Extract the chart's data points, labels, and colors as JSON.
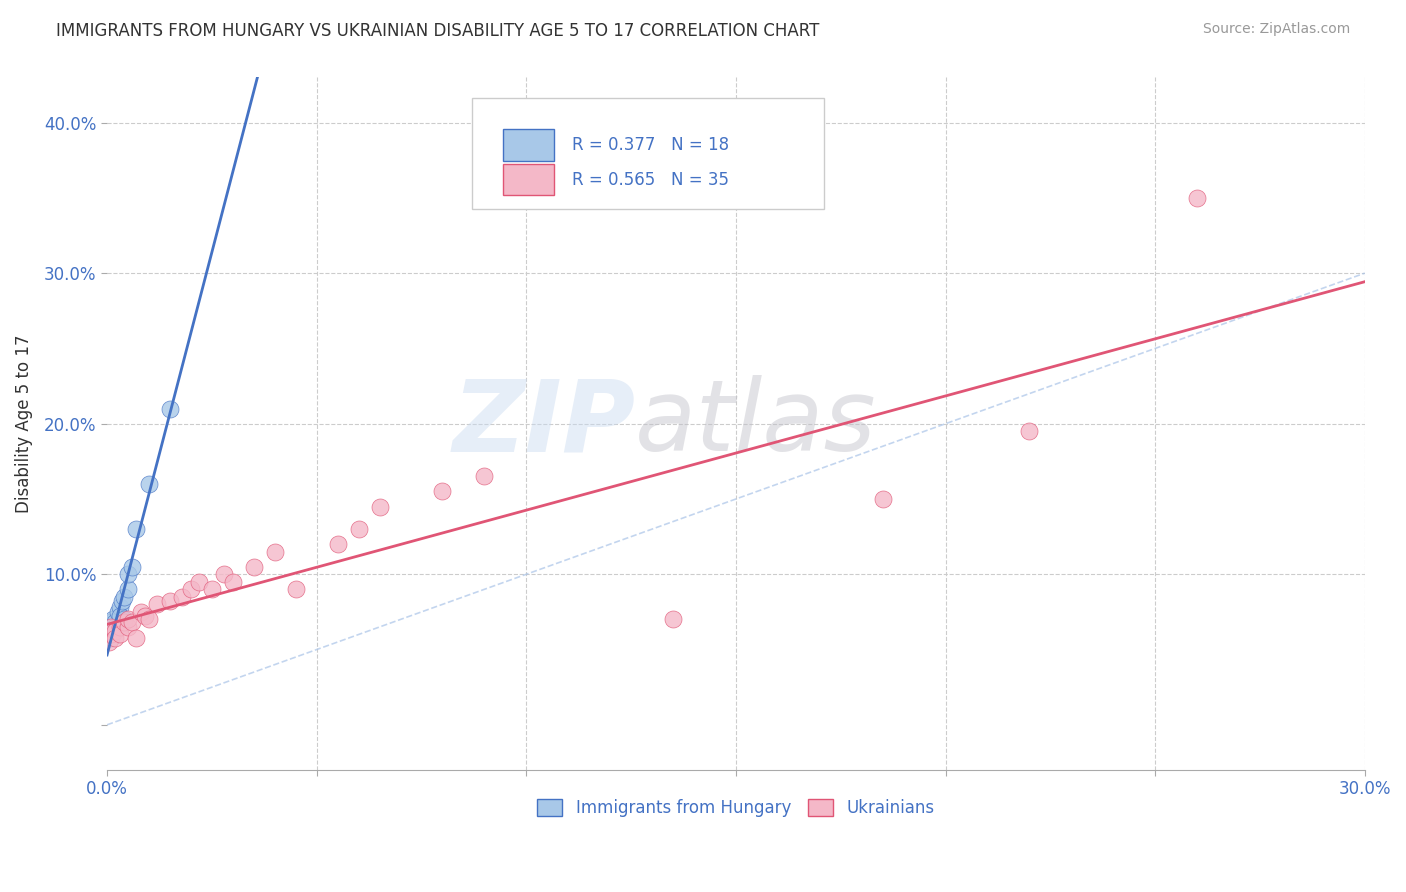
{
  "title": "IMMIGRANTS FROM HUNGARY VS UKRAINIAN DISABILITY AGE 5 TO 17 CORRELATION CHART",
  "source": "Source: ZipAtlas.com",
  "ylabel": "Disability Age 5 to 17",
  "xlim": [
    0.0,
    0.3
  ],
  "ylim": [
    -0.03,
    0.43
  ],
  "xticks": [
    0.0,
    0.05,
    0.1,
    0.15,
    0.2,
    0.25,
    0.3
  ],
  "xticklabels": [
    "0.0%",
    "",
    "",
    "",
    "",
    "",
    "30.0%"
  ],
  "yticks": [
    0.0,
    0.1,
    0.2,
    0.3,
    0.4
  ],
  "yticklabels": [
    "",
    "10.0%",
    "20.0%",
    "30.0%",
    "40.0%"
  ],
  "hungary_R": "0.377",
  "hungary_N": "18",
  "ukraine_R": "0.565",
  "ukraine_N": "35",
  "hungary_color": "#a8c8e8",
  "ukraine_color": "#f4b8c8",
  "hungary_line_color": "#4472c4",
  "ukraine_line_color": "#e05575",
  "background_color": "#ffffff",
  "grid_color": "#cccccc",
  "hungary_x": [
    0.0005,
    0.001,
    0.001,
    0.0015,
    0.002,
    0.002,
    0.0025,
    0.003,
    0.003,
    0.0035,
    0.004,
    0.004,
    0.005,
    0.005,
    0.006,
    0.007,
    0.01,
    0.015
  ],
  "hungary_y": [
    0.062,
    0.058,
    0.068,
    0.07,
    0.068,
    0.065,
    0.075,
    0.078,
    0.072,
    0.082,
    0.085,
    0.07,
    0.09,
    0.1,
    0.105,
    0.13,
    0.16,
    0.21
  ],
  "ukraine_x": [
    0.0005,
    0.001,
    0.001,
    0.002,
    0.002,
    0.003,
    0.003,
    0.004,
    0.005,
    0.005,
    0.006,
    0.007,
    0.008,
    0.009,
    0.01,
    0.012,
    0.015,
    0.018,
    0.02,
    0.022,
    0.025,
    0.028,
    0.03,
    0.035,
    0.04,
    0.045,
    0.055,
    0.06,
    0.065,
    0.08,
    0.09,
    0.135,
    0.185,
    0.22,
    0.26
  ],
  "ukraine_y": [
    0.055,
    0.06,
    0.065,
    0.062,
    0.058,
    0.065,
    0.06,
    0.068,
    0.065,
    0.07,
    0.068,
    0.058,
    0.075,
    0.072,
    0.07,
    0.08,
    0.082,
    0.085,
    0.09,
    0.095,
    0.09,
    0.1,
    0.095,
    0.105,
    0.115,
    0.09,
    0.12,
    0.13,
    0.145,
    0.155,
    0.165,
    0.07,
    0.15,
    0.195,
    0.35
  ],
  "diag_line_x": [
    0.0,
    0.3
  ],
  "diag_line_y": [
    0.0,
    0.3
  ]
}
